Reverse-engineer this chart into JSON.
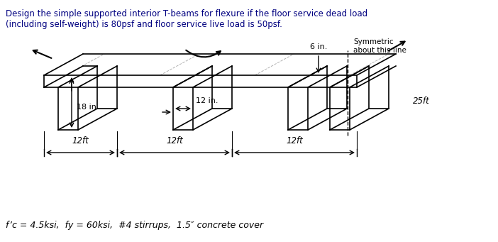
{
  "title_text": "Design the simple supported interior T-beams for flexure if the floor service dead load\n(including self-weight) is 80psf and floor service live load is 50psf.",
  "footer_text": "f’c = 4.5ksi,  fy = 60ksi,  #4 stirrups,  1.5″ concrete cover",
  "label_18in": "18 in.",
  "label_12in": "12 in.",
  "label_6in": "6 in.",
  "label_25ft": "25ft",
  "label_12ft_1": "12ft",
  "label_12ft_2": "12ft",
  "label_12ft_3": "12ft",
  "label_symmetric": "Symmetric\nabout this line",
  "bg_color": "#ffffff",
  "line_color": "#000000",
  "title_color": "#000080",
  "footer_color": "#000000"
}
